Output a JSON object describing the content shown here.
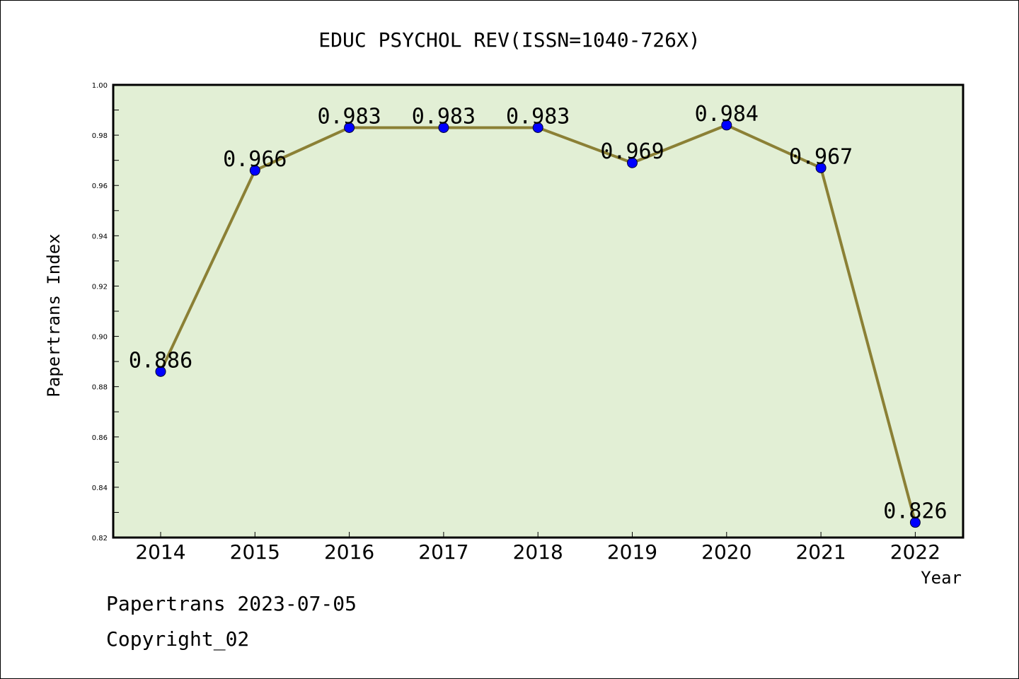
{
  "chart_data": {
    "type": "line",
    "title": "EDUC PSYCHOL REV(ISSN=1040-726X)",
    "xlabel": "Year",
    "ylabel": "Papertrans Index",
    "categories": [
      "2014",
      "2015",
      "2016",
      "2017",
      "2018",
      "2019",
      "2020",
      "2021",
      "2022"
    ],
    "values": [
      0.886,
      0.966,
      0.983,
      0.983,
      0.983,
      0.969,
      0.984,
      0.967,
      0.826
    ],
    "data_labels": [
      "0.886",
      "0.966",
      "0.983",
      "0.983",
      "0.983",
      "0.969",
      "0.984",
      "0.967",
      "0.826"
    ],
    "ylim": [
      0.82,
      1.0
    ],
    "yticks": [
      "0.82",
      "0.84",
      "0.86",
      "0.88",
      "0.90",
      "0.92",
      "0.94",
      "0.96",
      "0.98",
      "1.00"
    ],
    "grid": false,
    "colors": {
      "plot_background": "#e2efd5",
      "line": "#8b8035",
      "marker": "#0000ff"
    }
  },
  "footer": {
    "line1": "Papertrans 2023-07-05",
    "line2": "Copyright_02"
  }
}
